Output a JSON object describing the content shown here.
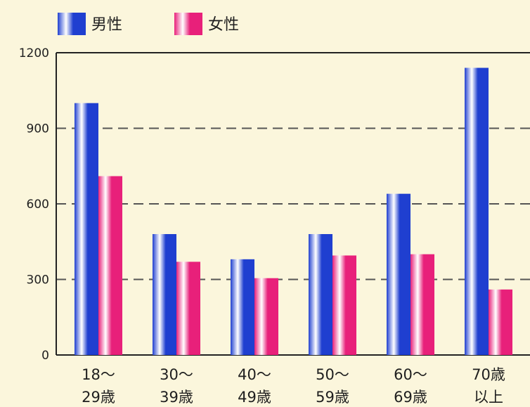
{
  "chart_data": {
    "type": "bar",
    "categories": [
      [
        "18〜",
        "29歳"
      ],
      [
        "30〜",
        "39歳"
      ],
      [
        "40〜",
        "49歳"
      ],
      [
        "50〜",
        "59歳"
      ],
      [
        "60〜",
        "69歳"
      ],
      [
        "70歳",
        "以上"
      ]
    ],
    "series": [
      {
        "name": "男性",
        "color": "#1f3fd0",
        "values": [
          1000,
          480,
          380,
          480,
          640,
          1140
        ]
      },
      {
        "name": "女性",
        "color": "#e8207a",
        "values": [
          710,
          370,
          305,
          395,
          400,
          260
        ]
      }
    ],
    "ylim": [
      0,
      1200
    ],
    "yticks": [
      0,
      300,
      600,
      900,
      1200
    ],
    "grid": "dashed-horizontal",
    "legend": "top-left",
    "background": "#fbf6dc"
  }
}
